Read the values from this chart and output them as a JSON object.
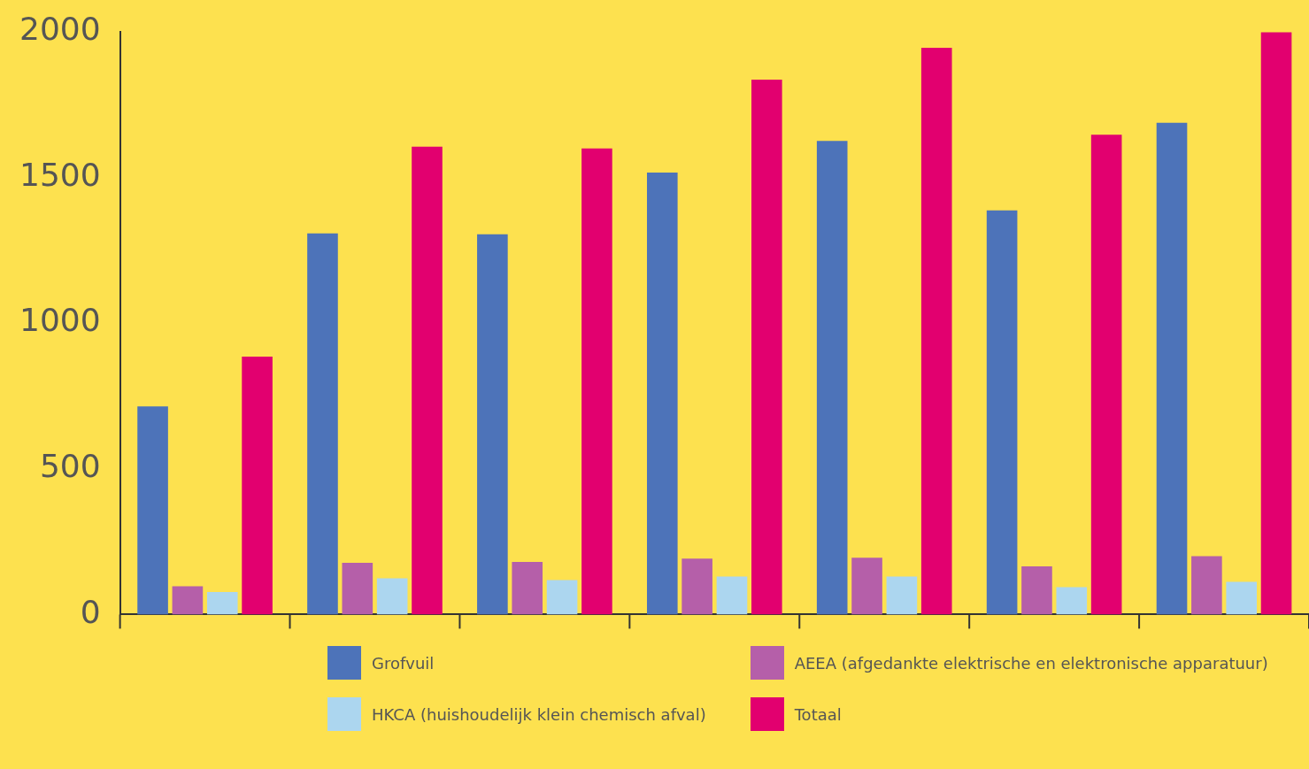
{
  "chart_data": {
    "type": "bar",
    "categories": [
      null,
      null,
      null,
      null,
      null,
      null,
      null
    ],
    "series": [
      {
        "name": "Grofvuil",
        "color": "#4d73b9",
        "values": [
          714,
          1307,
          1304,
          1516,
          1625,
          1386,
          1687
        ]
      },
      {
        "name": "AEEA (afgedankte elektrische en elektronische apparatuur)",
        "color": "#b55fa9",
        "values": [
          97,
          177,
          180,
          192,
          195,
          165,
          200
        ]
      },
      {
        "name": "HKCA (huishoudelijk klein chemisch afval)",
        "color": "#acd6ef",
        "values": [
          77,
          124,
          118,
          130,
          130,
          94,
          112
        ]
      },
      {
        "name": "Totaal",
        "color": "#e2006f",
        "values": [
          885,
          1605,
          1599,
          1835,
          1944,
          1646,
          1997
        ]
      }
    ],
    "ylim": [
      0,
      2000
    ],
    "yticks": [
      0,
      500,
      1000,
      1500,
      2000
    ],
    "grid": false,
    "legend": "bottom",
    "tick_labels": "y"
  }
}
